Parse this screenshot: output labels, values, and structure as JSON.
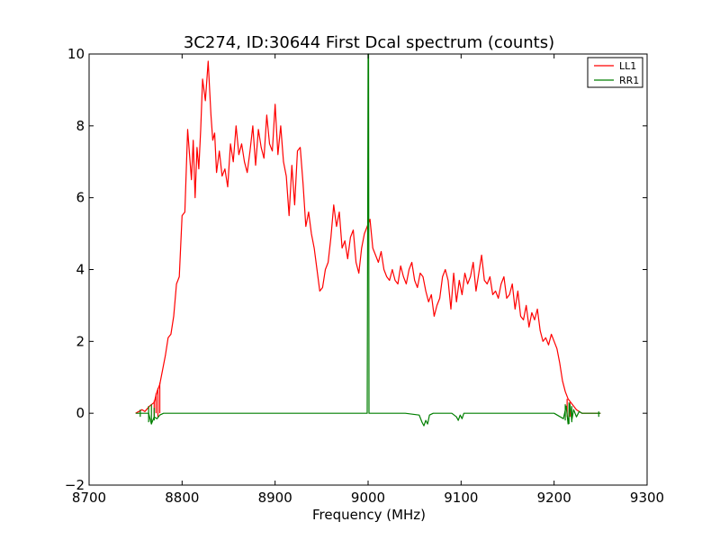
{
  "chart_data": {
    "type": "line",
    "title": "3C274, ID:30644 First Dcal spectrum (counts)",
    "xlabel": "Frequency (MHz)",
    "ylabel": "",
    "xlim": [
      8700,
      9300
    ],
    "ylim": [
      -2,
      10
    ],
    "xticks": [
      "8700",
      "8800",
      "8900",
      "9000",
      "9100",
      "9200",
      "9300"
    ],
    "yticks": [
      "−2",
      "0",
      "2",
      "4",
      "6",
      "8",
      "10"
    ],
    "grid": false,
    "legend_position": "top-right",
    "series": [
      {
        "name": "LL1",
        "color": "#ff0000",
        "x": [
          8750,
          8757,
          8760,
          8765,
          8770,
          8773,
          8776,
          8779,
          8782,
          8785,
          8788,
          8791,
          8794,
          8797,
          8800,
          8803,
          8806,
          8808,
          8810,
          8812,
          8814,
          8816,
          8818,
          8820,
          8822,
          8825,
          8828,
          8831,
          8833,
          8835,
          8837,
          8840,
          8843,
          8846,
          8849,
          8852,
          8855,
          8858,
          8861,
          8864,
          8867,
          8870,
          8873,
          8876,
          8879,
          8882,
          8885,
          8888,
          8891,
          8894,
          8897,
          8900,
          8903,
          8906,
          8909,
          8912,
          8915,
          8918,
          8921,
          8924,
          8927,
          8930,
          8933,
          8936,
          8939,
          8942,
          8945,
          8948,
          8951,
          8954,
          8957,
          8960,
          8963,
          8966,
          8969,
          8972,
          8975,
          8978,
          8981,
          8984,
          8987,
          8990,
          8993,
          8996,
          8999,
          9002,
          9005,
          9008,
          9011,
          9014,
          9017,
          9020,
          9023,
          9026,
          9029,
          9032,
          9035,
          9038,
          9041,
          9044,
          9047,
          9050,
          9053,
          9056,
          9059,
          9062,
          9065,
          9068,
          9071,
          9074,
          9077,
          9080,
          9083,
          9086,
          9089,
          9092,
          9095,
          9098,
          9101,
          9104,
          9107,
          9110,
          9113,
          9116,
          9119,
          9122,
          9125,
          9128,
          9131,
          9134,
          9137,
          9140,
          9143,
          9146,
          9149,
          9152,
          9155,
          9158,
          9161,
          9164,
          9167,
          9170,
          9173,
          9176,
          9179,
          9182,
          9185,
          9188,
          9191,
          9194,
          9197,
          9200,
          9203,
          9206,
          9209,
          9212,
          9215,
          9218,
          9221,
          9224,
          9227,
          9230,
          9235,
          9240,
          9245,
          9250
        ],
        "values": [
          0.0,
          0.1,
          0.05,
          0.2,
          0.3,
          0.6,
          0.8,
          1.2,
          1.6,
          2.1,
          2.2,
          2.7,
          3.6,
          3.8,
          5.5,
          5.6,
          7.9,
          7.2,
          6.5,
          7.6,
          6.0,
          7.4,
          6.8,
          7.9,
          9.3,
          8.7,
          9.8,
          8.3,
          7.6,
          7.8,
          6.7,
          7.3,
          6.6,
          6.8,
          6.3,
          7.5,
          7.0,
          8.0,
          7.2,
          7.5,
          7.0,
          6.7,
          7.3,
          8.0,
          6.9,
          7.9,
          7.4,
          7.1,
          8.3,
          7.5,
          7.3,
          8.6,
          7.2,
          8.0,
          7.0,
          6.6,
          5.5,
          6.9,
          5.8,
          7.3,
          7.4,
          6.4,
          5.2,
          5.6,
          5.0,
          4.6,
          4.0,
          3.4,
          3.5,
          4.0,
          4.2,
          4.9,
          5.8,
          5.2,
          5.6,
          4.6,
          4.8,
          4.3,
          4.9,
          5.1,
          4.2,
          3.9,
          4.6,
          5.0,
          5.2,
          5.4,
          4.6,
          4.4,
          4.2,
          4.5,
          4.0,
          3.8,
          3.7,
          4.0,
          3.7,
          3.6,
          4.1,
          3.8,
          3.6,
          4.0,
          4.2,
          3.7,
          3.5,
          3.9,
          3.8,
          3.4,
          3.1,
          3.3,
          2.7,
          3.0,
          3.2,
          3.8,
          4.0,
          3.7,
          2.9,
          3.9,
          3.1,
          3.7,
          3.3,
          3.9,
          3.6,
          3.8,
          4.2,
          3.4,
          3.9,
          4.4,
          3.7,
          3.6,
          3.8,
          3.3,
          3.4,
          3.2,
          3.6,
          3.8,
          3.2,
          3.3,
          3.6,
          2.9,
          3.4,
          2.7,
          2.6,
          3.0,
          2.4,
          2.8,
          2.6,
          2.9,
          2.3,
          2.0,
          2.1,
          1.9,
          2.2,
          2.0,
          1.8,
          1.4,
          0.9,
          0.6,
          0.4,
          0.3,
          0.2,
          0.1,
          0.05,
          0.0,
          0.0,
          0.0,
          0.0,
          0.0
        ],
        "spikes": [
          {
            "x": 8770,
            "y_min": -0.1,
            "y_max": 0.35
          },
          {
            "x": 8772,
            "y_min": 0.0,
            "y_max": 0.55
          },
          {
            "x": 8774,
            "y_min": -0.1,
            "y_max": 0.7
          },
          {
            "x": 8776,
            "y_min": 0.0,
            "y_max": 0.85
          },
          {
            "x": 9214,
            "y_min": -0.1,
            "y_max": 0.4
          },
          {
            "x": 9217,
            "y_min": -0.1,
            "y_max": 0.3
          }
        ]
      },
      {
        "name": "RR1",
        "color": "#007f00",
        "x": [
          8750,
          8756,
          8760,
          8764,
          8767,
          8770,
          8773,
          8776,
          8780,
          8790,
          8800,
          8850,
          8900,
          8950,
          8990,
          8999,
          9000,
          9000.5,
          9001,
          9010,
          9040,
          9055,
          9058,
          9060,
          9062,
          9064,
          9066,
          9070,
          9090,
          9095,
          9097,
          9099,
          9101,
          9103,
          9110,
          9130,
          9160,
          9200,
          9210,
          9213,
          9215,
          9217,
          9219,
          9221,
          9224,
          9227,
          9230,
          9240,
          9250
        ],
        "values": [
          0.0,
          0.0,
          0.0,
          0.0,
          -0.3,
          -0.1,
          -0.15,
          -0.05,
          0.0,
          0.0,
          0.0,
          0.0,
          0.0,
          0.0,
          0.0,
          0.0,
          10.0,
          10.0,
          0.0,
          0.0,
          0.0,
          -0.05,
          -0.25,
          -0.35,
          -0.2,
          -0.3,
          -0.05,
          0.0,
          0.0,
          -0.1,
          -0.2,
          -0.05,
          -0.15,
          0.0,
          0.0,
          0.0,
          0.0,
          0.0,
          -0.15,
          0.2,
          -0.3,
          0.25,
          -0.2,
          0.1,
          -0.1,
          0.05,
          0.0,
          0.0,
          0.0
        ],
        "spikes": [
          {
            "x": 8755,
            "y_min": -0.1,
            "y_max": 0.1
          },
          {
            "x": 8764,
            "y_min": -0.25,
            "y_max": 0.2
          },
          {
            "x": 8767,
            "y_min": -0.3,
            "y_max": 0.25
          },
          {
            "x": 8770,
            "y_min": -0.2,
            "y_max": 0.15
          },
          {
            "x": 9212,
            "y_min": -0.2,
            "y_max": 0.25
          },
          {
            "x": 9216,
            "y_min": -0.3,
            "y_max": 0.3
          },
          {
            "x": 9219,
            "y_min": -0.25,
            "y_max": 0.2
          },
          {
            "x": 9248,
            "y_min": -0.1,
            "y_max": 0.05
          }
        ]
      }
    ]
  }
}
